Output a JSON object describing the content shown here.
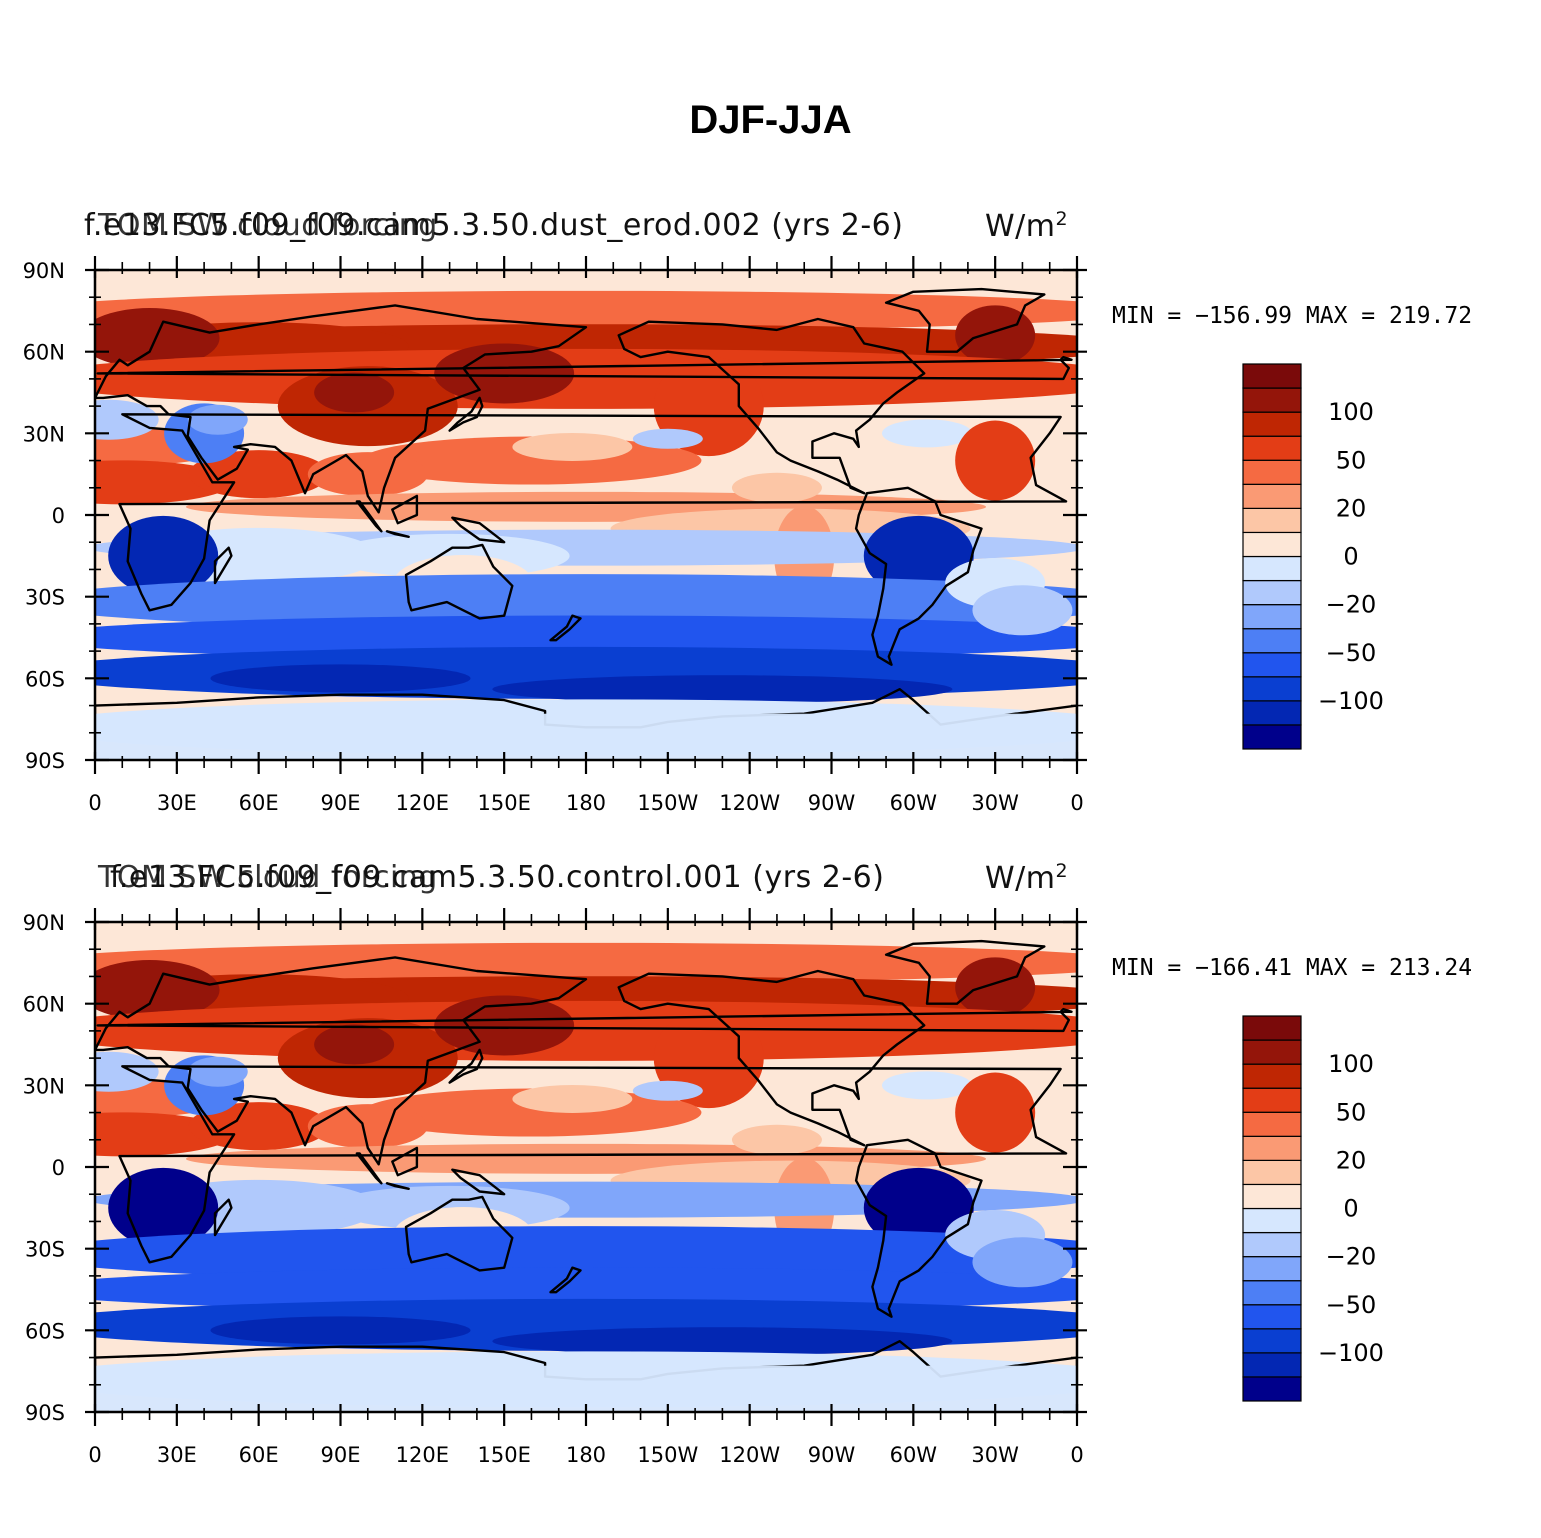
{
  "title": "DJF-JJA",
  "colors": {
    "scale": [
      "#00008b",
      "#0327b3",
      "#0a3fd1",
      "#2155ee",
      "#4d7ff5",
      "#80a6fa",
      "#b0c9fc",
      "#d6e7fe",
      "#fde7d7",
      "#fcc6a6",
      "#fa9a74",
      "#f56a42",
      "#e33d16",
      "#bf2603",
      "#94150a",
      "#7a0a0a"
    ],
    "coast": "#000000"
  },
  "panels": [
    {
      "left_title": "f.e13.FC5.f09_f09.cam5.3.50.dust_erod.002  (yrs 2-6)",
      "mid_title": "TOM SW cloud forcing",
      "units": "W/m",
      "units_exp": "2",
      "min_label": "MIN",
      "min_value": "−156.99",
      "max_label": "MAX",
      "max_value": "219.72",
      "dust_variant": true
    },
    {
      "left_title": "f.e13.FC5.f09_f09.cam5.3.50.control.001  (yrs 2-6)",
      "mid_title": "TOM SW cloud forcing",
      "units": "W/m",
      "units_exp": "2",
      "min_label": "MIN",
      "min_value": "−166.41",
      "max_label": "MAX",
      "max_value": "213.24",
      "dust_variant": false
    }
  ],
  "axes": {
    "lat_labels": [
      "90N",
      "60N",
      "30N",
      "0",
      "30S",
      "60S",
      "90S"
    ],
    "lon_labels": [
      "0",
      "30E",
      "60E",
      "90E",
      "120E",
      "150E",
      "180",
      "150W",
      "120W",
      "90W",
      "60W",
      "30W",
      "0"
    ]
  },
  "colorbar": {
    "levels": [
      -150,
      -100,
      -80,
      -50,
      -40,
      -20,
      -10,
      0,
      10,
      20,
      40,
      50,
      80,
      100,
      150
    ],
    "labels": [
      "100",
      "50",
      "20",
      "0",
      "−20",
      "−50",
      "−100"
    ]
  }
}
